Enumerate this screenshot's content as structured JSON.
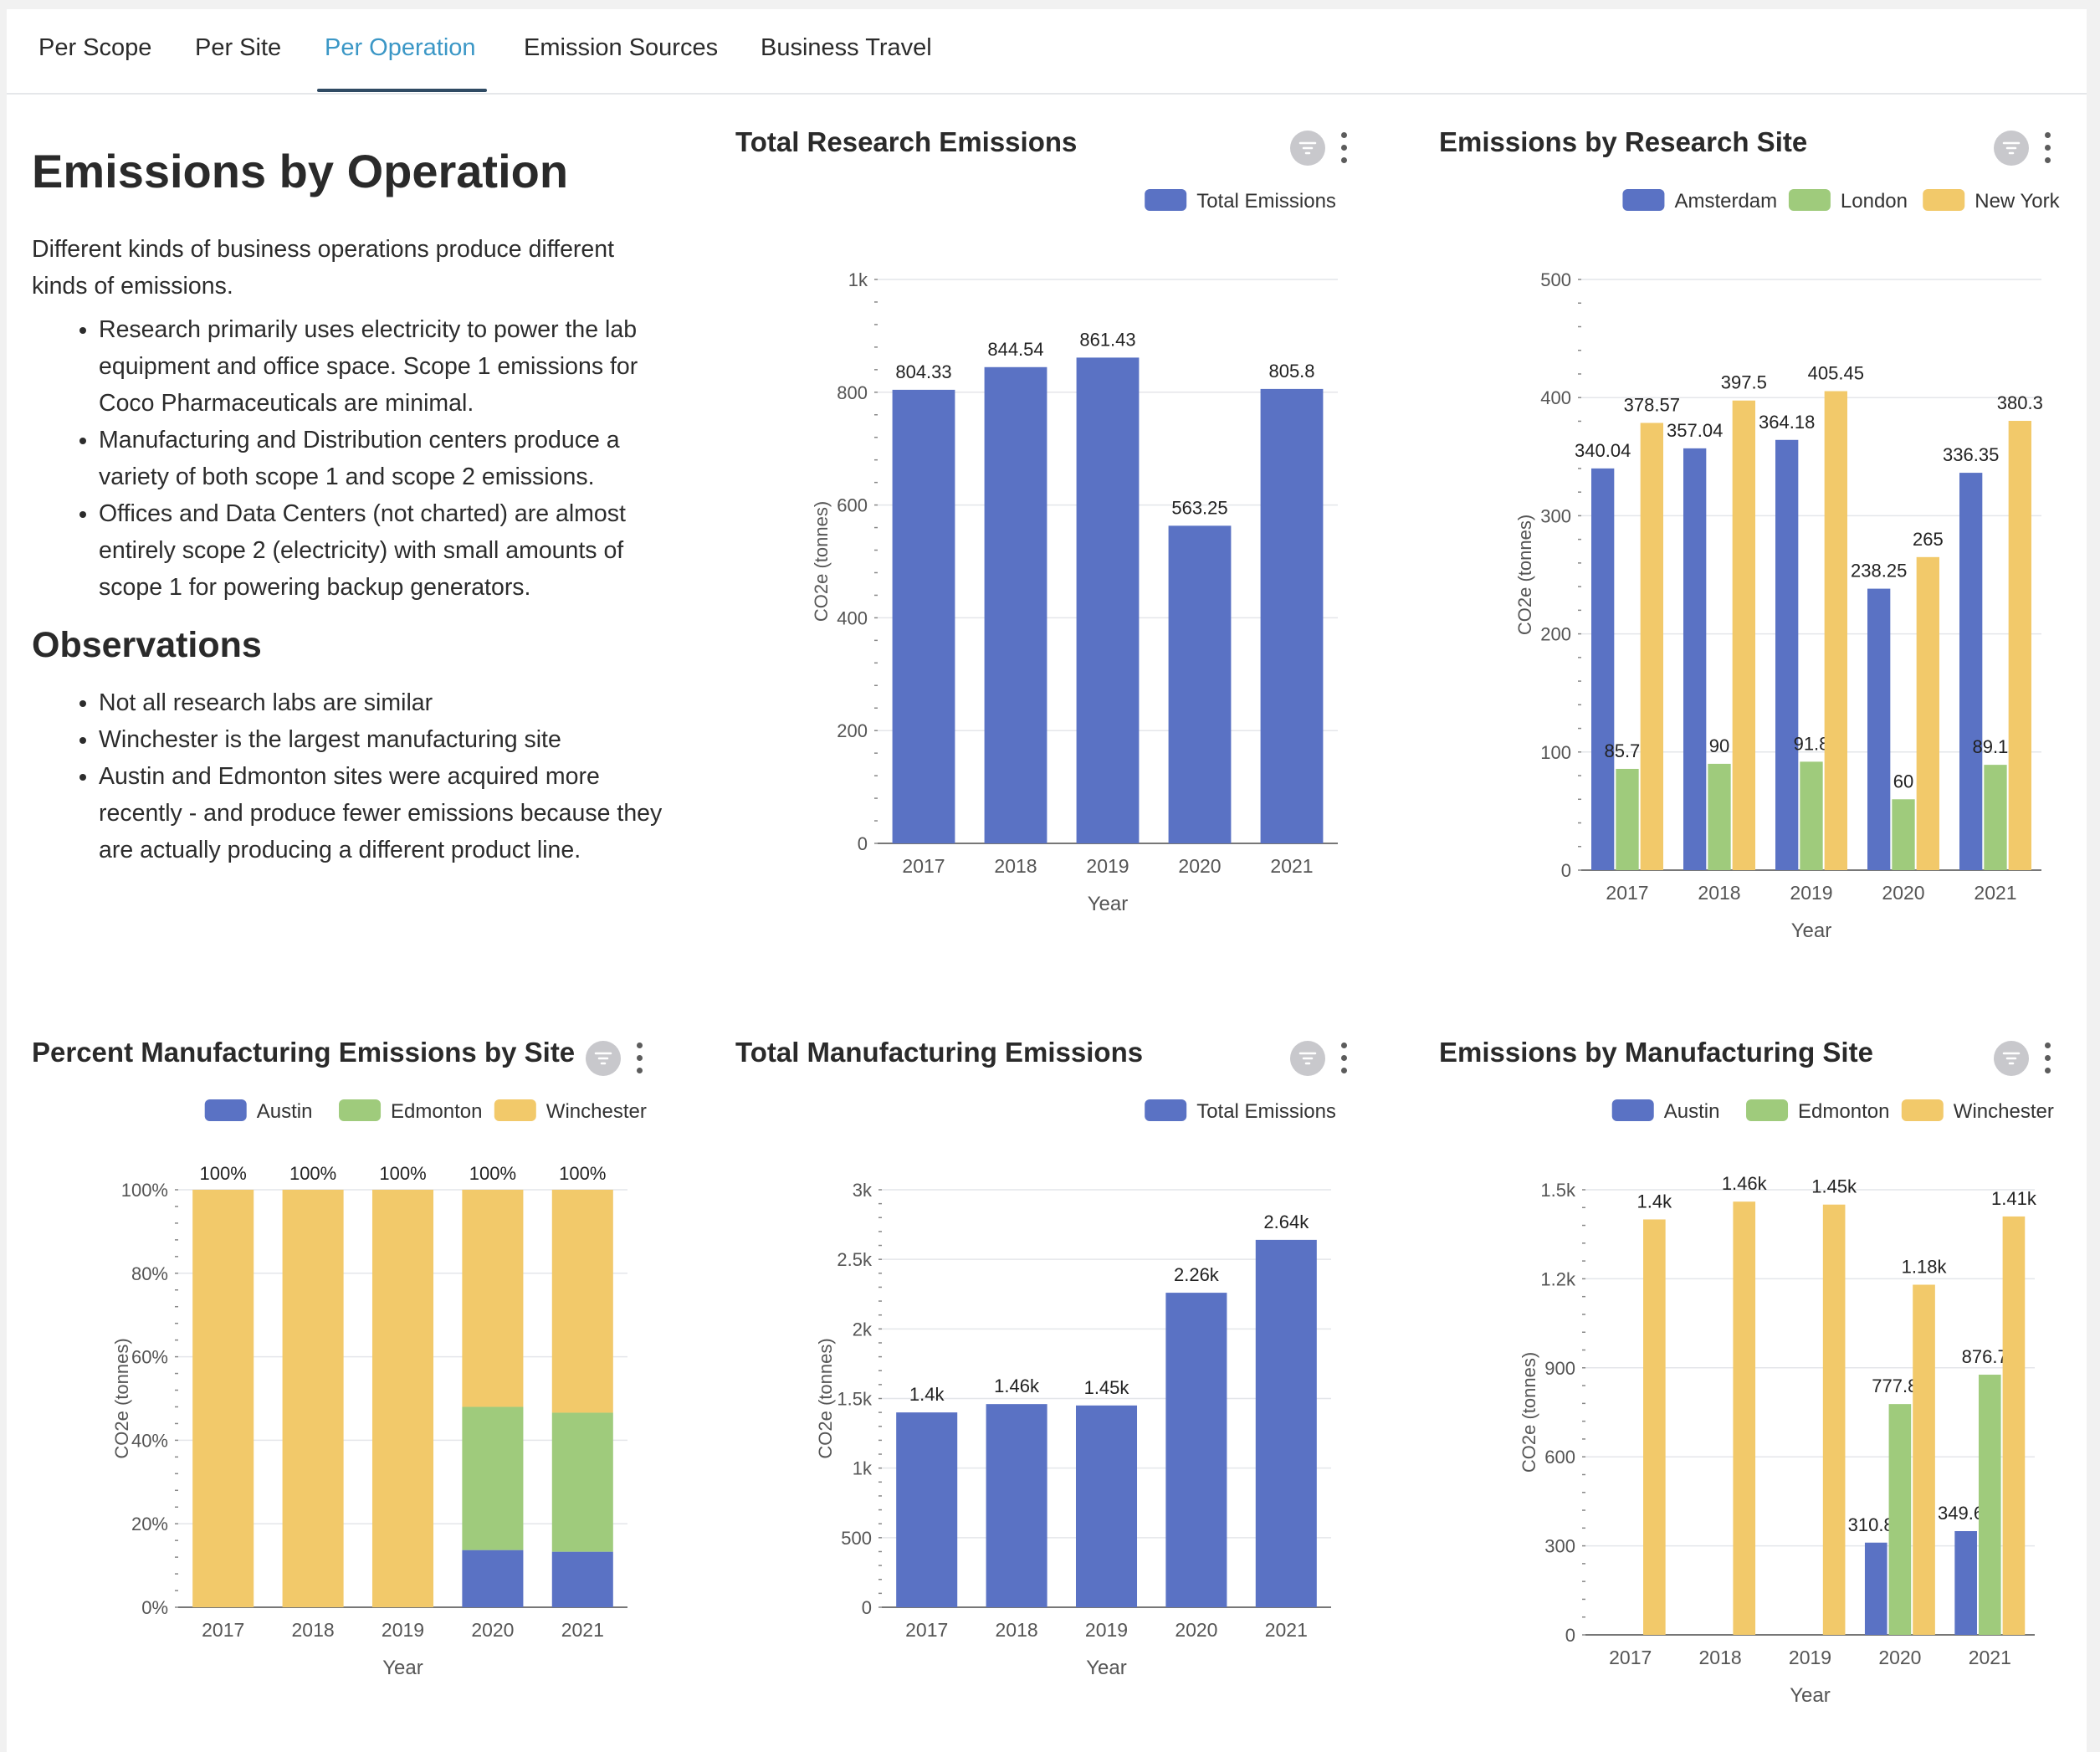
{
  "tabs": [
    {
      "label": "Per Scope"
    },
    {
      "label": "Per Site"
    },
    {
      "label": "Per Operation",
      "active": true
    },
    {
      "label": "Emission Sources"
    },
    {
      "label": "Business Travel"
    }
  ],
  "intro": {
    "title": "Emissions by Operation",
    "paragraph": "Different kinds of business operations produce different kinds of emissions.",
    "bullets": [
      "Research primarily uses electricity to power the lab equipment and office space. Scope 1 emissions for Coco Pharmaceuticals are minimal.",
      "Manufacturing and Distribution centers produce a variety of both scope 1 and scope 2 emissions.",
      "Offices and Data Centers (not charted) are almost entirely scope 2 (electricity) with small amounts of scope 1 for powering backup generators."
    ],
    "observations_title": "Observations",
    "observations": [
      "Not all research labs are similar",
      "Winchester is the largest manufacturing site",
      "Austin and Edmonton sites were acquired more recently - and produce fewer emissions because they are actually producing a different product line."
    ]
  },
  "colors": {
    "blue": "#5a72c4",
    "green": "#9fcb7c",
    "yellow": "#f2c96a",
    "active_tab": "#3b97c6"
  },
  "chart_data": [
    {
      "id": "research_total",
      "type": "bar",
      "title": "Total Research Emissions",
      "xlabel": "Year",
      "ylabel": "CO2e (tonnes)",
      "categories": [
        "2017",
        "2018",
        "2019",
        "2020",
        "2021"
      ],
      "ylim": [
        0,
        1000
      ],
      "yticks": [
        0,
        200,
        400,
        600,
        800,
        1000
      ],
      "ytick_labels": [
        "0",
        "200",
        "400",
        "600",
        "800",
        "1k"
      ],
      "legend_position": "top-right",
      "series": [
        {
          "name": "Total Emissions",
          "color": "#5a72c4",
          "values": [
            804.33,
            844.54,
            861.43,
            563.25,
            805.8
          ],
          "labels": [
            "804.33",
            "844.54",
            "861.43",
            "563.25",
            "805.8"
          ]
        }
      ]
    },
    {
      "id": "research_sites",
      "type": "bar",
      "title": "Emissions by Research Site",
      "xlabel": "Year",
      "ylabel": "CO2e (tonnes)",
      "categories": [
        "2017",
        "2018",
        "2019",
        "2020",
        "2021"
      ],
      "ylim": [
        0,
        500
      ],
      "yticks": [
        0,
        100,
        200,
        300,
        400,
        500
      ],
      "ytick_labels": [
        "0",
        "100",
        "200",
        "300",
        "400",
        "500"
      ],
      "legend_position": "top-right",
      "series": [
        {
          "name": "Amsterdam",
          "color": "#5a72c4",
          "values": [
            340.04,
            357.04,
            364.18,
            238.25,
            336.35
          ],
          "labels": [
            "340.04",
            "357.04",
            "364.18",
            "238.25",
            "336.35"
          ]
        },
        {
          "name": "London",
          "color": "#9fcb7c",
          "values": [
            85.72,
            90,
            91.8,
            60,
            89.15
          ],
          "labels": [
            "85.72",
            "90",
            "91.8",
            "60",
            "89.15"
          ]
        },
        {
          "name": "New York",
          "color": "#f2c96a",
          "values": [
            378.57,
            397.5,
            405.45,
            265,
            380.3
          ],
          "labels": [
            "378.57",
            "397.5",
            "405.45",
            "265",
            "380.3"
          ]
        }
      ]
    },
    {
      "id": "mfg_percent",
      "type": "bar",
      "stacked": true,
      "title": "Percent Manufacturing Emissions by Site",
      "xlabel": "Year",
      "ylabel": "CO2e (tonnes)",
      "categories": [
        "2017",
        "2018",
        "2019",
        "2020",
        "2021"
      ],
      "ylim": [
        0,
        100
      ],
      "yticks": [
        0,
        20,
        40,
        60,
        80,
        100
      ],
      "ytick_labels": [
        "0%",
        "20%",
        "40%",
        "60%",
        "80%",
        "100%"
      ],
      "legend_position": "top-right",
      "top_labels": [
        "100%",
        "100%",
        "100%",
        "100%",
        "100%"
      ],
      "series": [
        {
          "name": "Austin",
          "color": "#5a72c4",
          "values": [
            0,
            0,
            0,
            13.7,
            13.3
          ]
        },
        {
          "name": "Edmonton",
          "color": "#9fcb7c",
          "values": [
            0,
            0,
            0,
            34.3,
            33.3
          ]
        },
        {
          "name": "Winchester",
          "color": "#f2c96a",
          "values": [
            100,
            100,
            100,
            52.0,
            53.4
          ]
        }
      ]
    },
    {
      "id": "mfg_total",
      "type": "bar",
      "title": "Total Manufacturing Emissions",
      "xlabel": "Year",
      "ylabel": "CO2e (tonnes)",
      "categories": [
        "2017",
        "2018",
        "2019",
        "2020",
        "2021"
      ],
      "ylim": [
        0,
        3000
      ],
      "yticks": [
        0,
        500,
        1000,
        1500,
        2000,
        2500,
        3000
      ],
      "ytick_labels": [
        "0",
        "500",
        "1k",
        "1.5k",
        "2k",
        "2.5k",
        "3k"
      ],
      "legend_position": "top-right",
      "series": [
        {
          "name": "Total Emissions",
          "color": "#5a72c4",
          "values": [
            1400,
            1460,
            1450,
            2260,
            2640
          ],
          "labels": [
            "1.4k",
            "1.46k",
            "1.45k",
            "2.26k",
            "2.64k"
          ]
        }
      ]
    },
    {
      "id": "mfg_sites",
      "type": "bar",
      "title": "Emissions by Manufacturing Site",
      "xlabel": "Year",
      "ylabel": "CO2e (tonnes)",
      "categories": [
        "2017",
        "2018",
        "2019",
        "2020",
        "2021"
      ],
      "ylim": [
        0,
        1500
      ],
      "yticks": [
        0,
        300,
        600,
        900,
        1200,
        1500
      ],
      "ytick_labels": [
        "0",
        "300",
        "600",
        "900",
        "1.2k",
        "1.5k"
      ],
      "legend_position": "top-right",
      "series": [
        {
          "name": "Austin",
          "color": "#5a72c4",
          "values": [
            0,
            0,
            0,
            310.84,
            349.61
          ],
          "labels": [
            "",
            "",
            "",
            "310.84",
            "349.61"
          ]
        },
        {
          "name": "Edmonton",
          "color": "#9fcb7c",
          "values": [
            0,
            0,
            0,
            777.81,
            876.79
          ],
          "labels": [
            "",
            "",
            "",
            "777.81",
            "876.79"
          ]
        },
        {
          "name": "Winchester",
          "color": "#f2c96a",
          "values": [
            1400,
            1460,
            1450,
            1180,
            1410
          ],
          "labels": [
            "1.4k",
            "1.46k",
            "1.45k",
            "1.18k",
            "1.41k"
          ]
        }
      ]
    }
  ]
}
